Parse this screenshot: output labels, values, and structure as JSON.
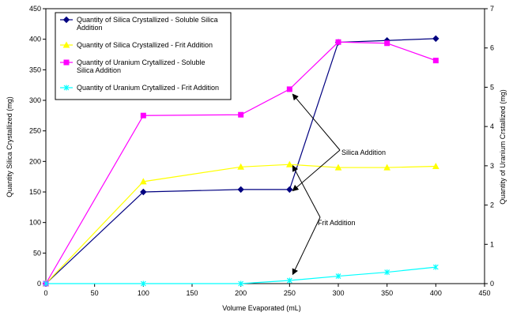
{
  "chart_data": {
    "type": "line",
    "xlabel": "Volume Evaporated (mL)",
    "ylabel": "Quantity Silica Crystallized (mg)",
    "y2label": "Quantity of Uranium Crstallized (mg)",
    "xlim": [
      0,
      450
    ],
    "ylim": [
      0,
      450
    ],
    "y2lim": [
      0,
      7
    ],
    "xticks": [
      0,
      50,
      100,
      150,
      200,
      250,
      300,
      350,
      400,
      450
    ],
    "yticks": [
      0,
      50,
      100,
      150,
      200,
      250,
      300,
      350,
      400,
      450
    ],
    "y2ticks": [
      0,
      1,
      2,
      3,
      4,
      5,
      6,
      7
    ],
    "grid": false,
    "legend_position": "top-left",
    "series": [
      {
        "name": "Quantity of Silica Crystallized - Soluble Silica Addition",
        "legend_lines": [
          "Quantity of Silica Crystallized - Soluble Silica",
          "Addition"
        ],
        "axis": "left",
        "color": "#000080",
        "marker": "diamond",
        "x": [
          0,
          100,
          200,
          250,
          300,
          350,
          400
        ],
        "y": [
          0,
          150,
          154,
          154,
          395,
          398,
          401
        ]
      },
      {
        "name": "Quantity of Silica Crystallized - Frit Addition",
        "legend_lines": [
          "Quantity of Silica Crystallized - Frit Addition"
        ],
        "axis": "left",
        "color": "#ffff00",
        "marker": "triangle",
        "x": [
          0,
          100,
          200,
          250,
          300,
          350,
          400
        ],
        "y": [
          0,
          167,
          191,
          195,
          190,
          190,
          192
        ]
      },
      {
        "name": "Quantity of Uranium Crytallized - Soluble Silica Addition",
        "legend_lines": [
          "Quantity of Uranium Crytallized - Soluble",
          "Silica Addition"
        ],
        "axis": "right",
        "color": "#ff00ff",
        "marker": "square",
        "x": [
          0,
          100,
          200,
          250,
          300,
          350,
          400
        ],
        "y": [
          0,
          4.28,
          4.3,
          4.95,
          6.15,
          6.12,
          5.68
        ]
      },
      {
        "name": "Quantity of Uranium Crytallized - Frit Addition",
        "legend_lines": [
          "Quantity of Uranium Crytallized - Frit Addition"
        ],
        "axis": "right",
        "color": "#00ffff",
        "marker": "star",
        "x": [
          0,
          100,
          200,
          250,
          300,
          350,
          400
        ],
        "y": [
          0,
          0,
          0,
          0.08,
          0.19,
          0.29,
          0.42
        ]
      }
    ],
    "annotations": [
      {
        "text": "Silica Addition",
        "arrows_to": [
          {
            "x": 250,
            "y": 310
          },
          {
            "x": 250,
            "y": 152
          }
        ]
      },
      {
        "text": "Frit Addition",
        "arrows_to": [
          {
            "x": 250,
            "y": 193
          },
          {
            "x": 250,
            "y": 15
          }
        ]
      }
    ]
  }
}
